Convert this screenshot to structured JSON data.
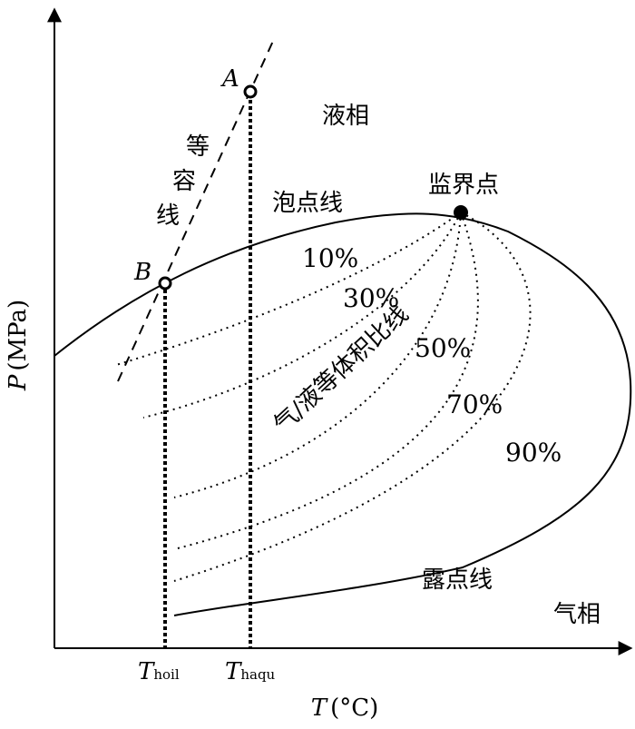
{
  "axes": {
    "y_label_italic": "P",
    "y_label_unit": "(MPa)",
    "x_label_italic": "T",
    "x_label_unit": "(°C)"
  },
  "regions": {
    "liquid": "液相",
    "gas": "气相",
    "critical_point": "监界点",
    "bubble_line": "泡点线",
    "dew_line": "露点线",
    "ratio_lines": "气/液等体积比线",
    "isochore_chars": [
      "等",
      "容",
      "线"
    ]
  },
  "points": {
    "A": "A",
    "B": "B"
  },
  "temperatures": {
    "t1_main": "T",
    "t1_sub": "hoil",
    "t2_main": "T",
    "t2_sub": "haqu"
  },
  "quality_labels": [
    "10%",
    "30%",
    "50%",
    "70%",
    "90%"
  ]
}
